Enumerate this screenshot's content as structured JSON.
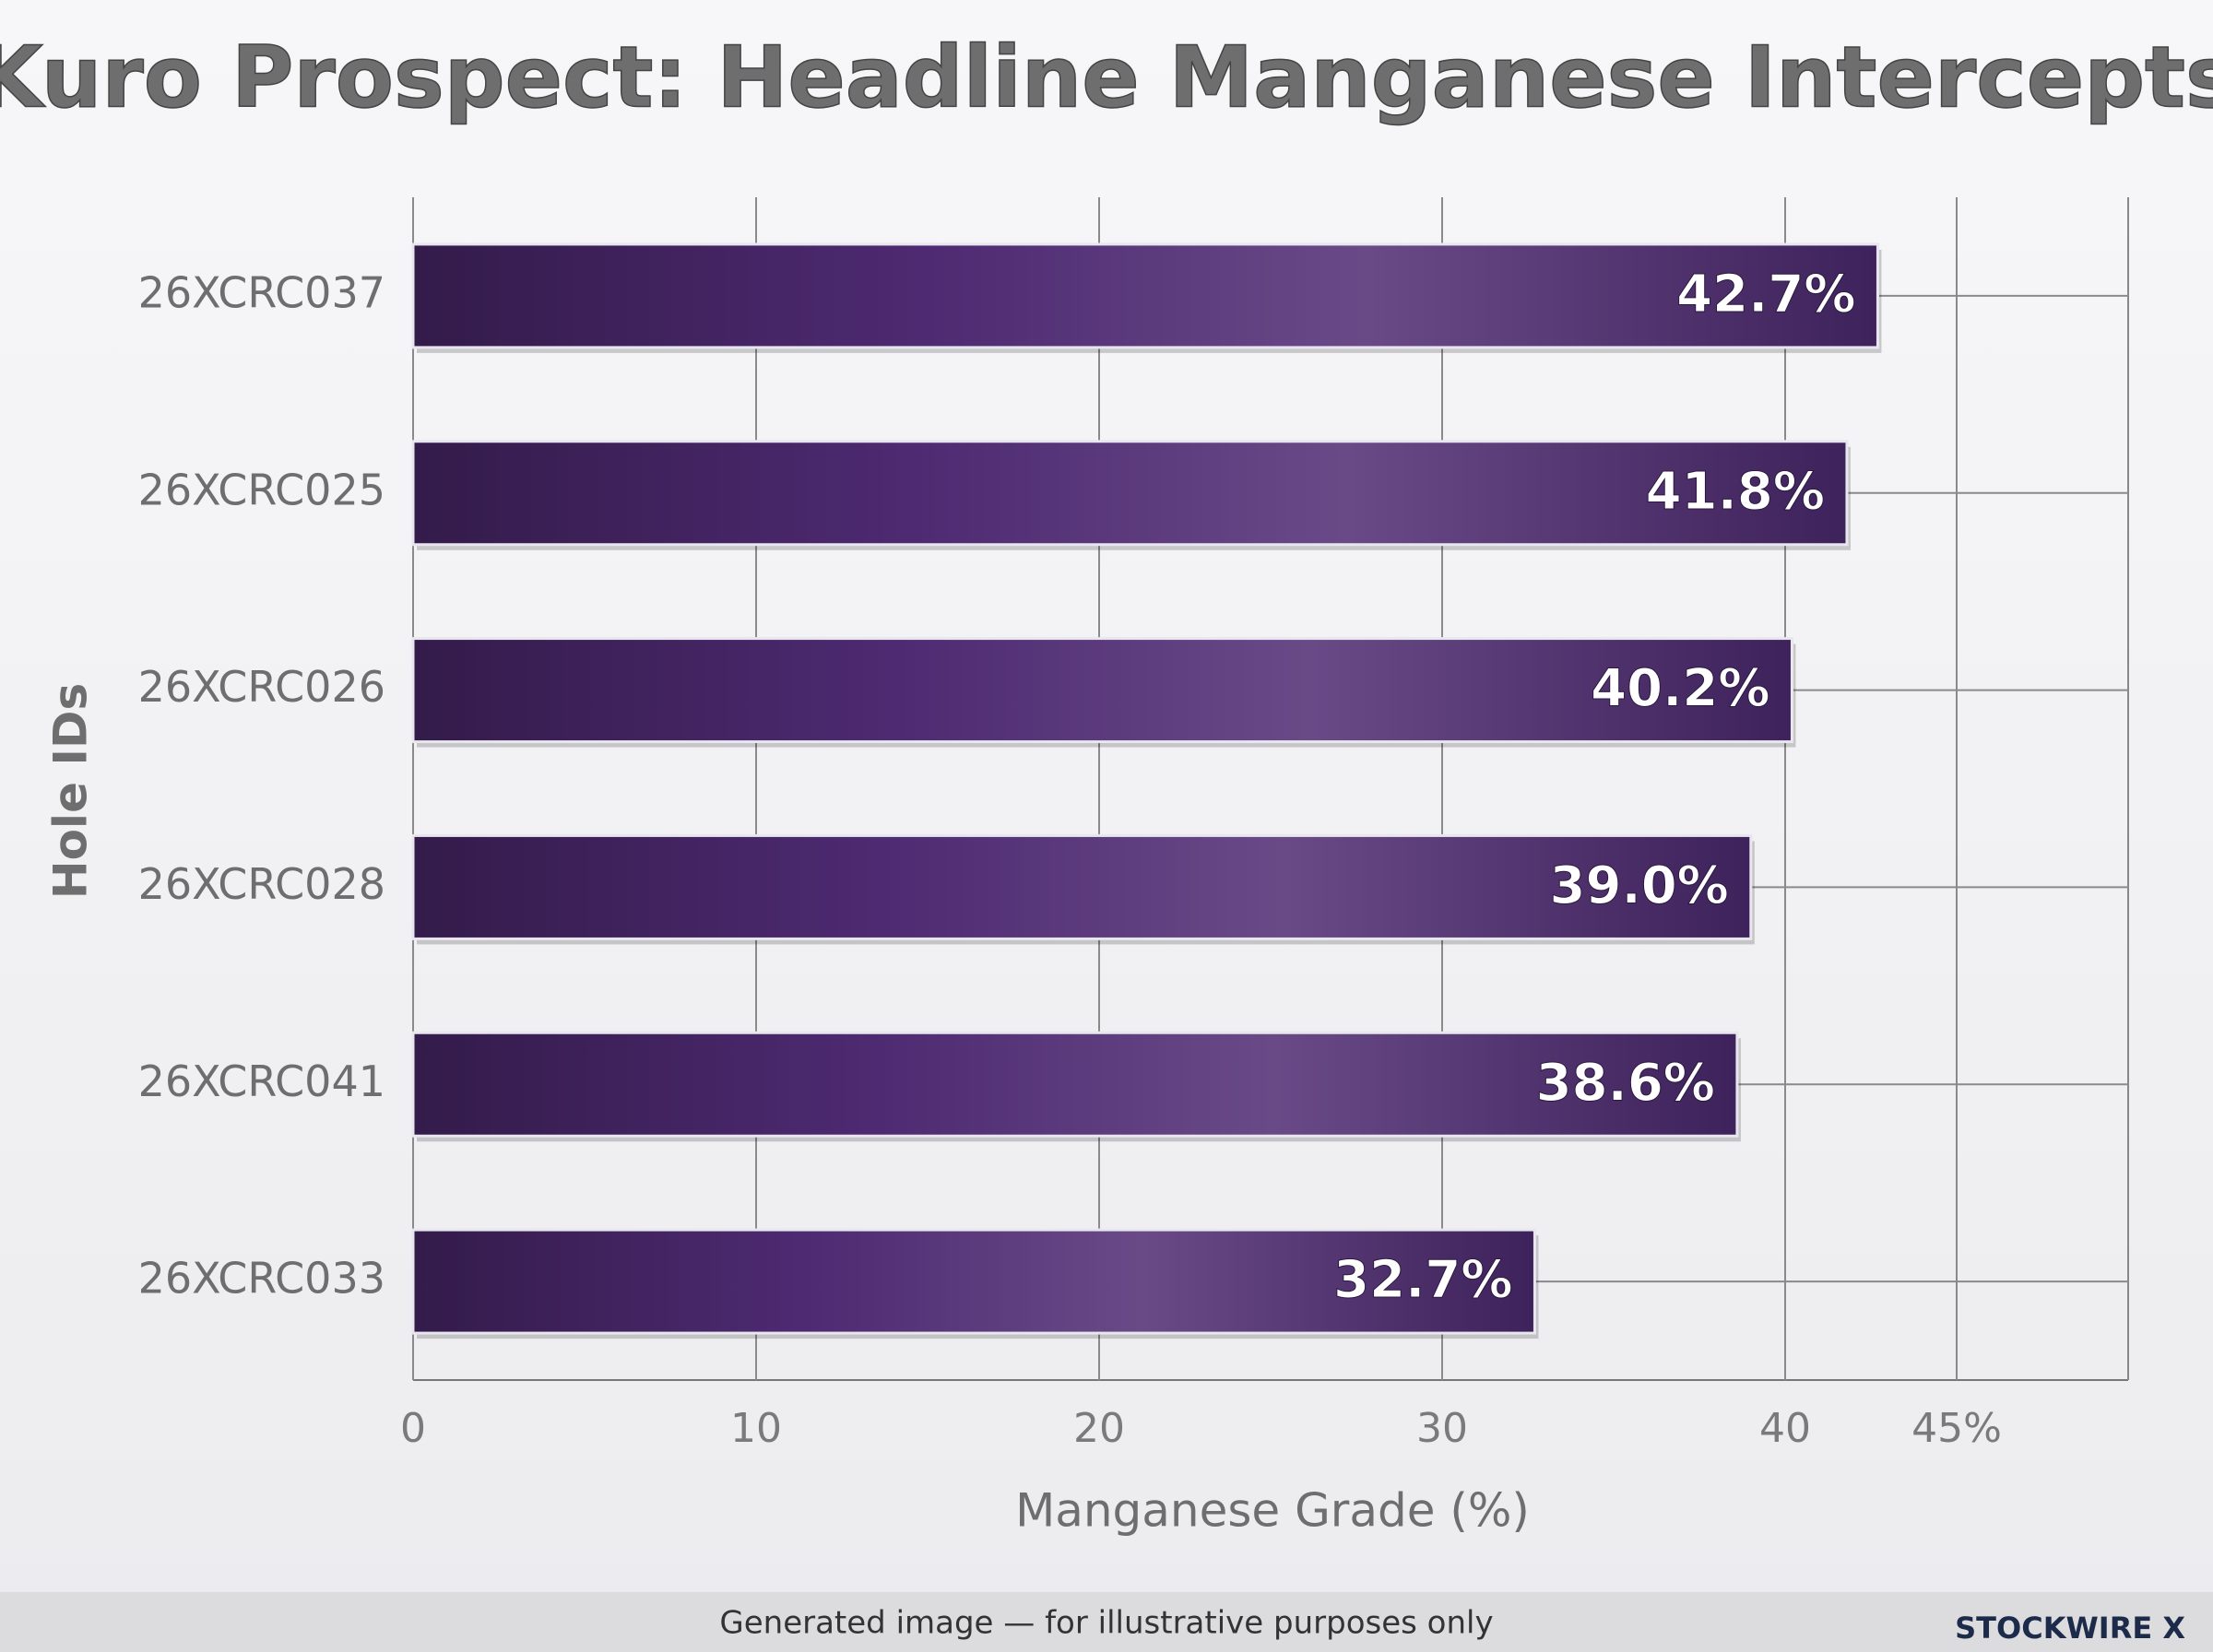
{
  "chart_data": {
    "type": "bar",
    "orientation": "horizontal",
    "title": "Kuro Prospect: Headline Manganese Intercepts",
    "x_label": "Manganese Grade (%)",
    "y_label": "Hole IDs",
    "categories": [
      "26XCRC037",
      "26XCRC025",
      "26XCRC026",
      "26XCRC028",
      "26XCRC041",
      "26XCRC033"
    ],
    "values": [
      42.7,
      41.8,
      40.2,
      39.0,
      38.6,
      32.7
    ],
    "value_labels": [
      "42.7%",
      "41.8%",
      "40.2%",
      "39.0%",
      "38.6%",
      "32.7%"
    ],
    "color": "#4e2a72",
    "xlim": [
      0,
      50
    ],
    "xticks": [
      0,
      10,
      20,
      30,
      40,
      {
        "value": 45,
        "label": "45%"
      }
    ],
    "grid": true
  },
  "footer": {
    "note": "Generated image — for illustrative purposes only",
    "brand": "STOCKWIRE X"
  }
}
